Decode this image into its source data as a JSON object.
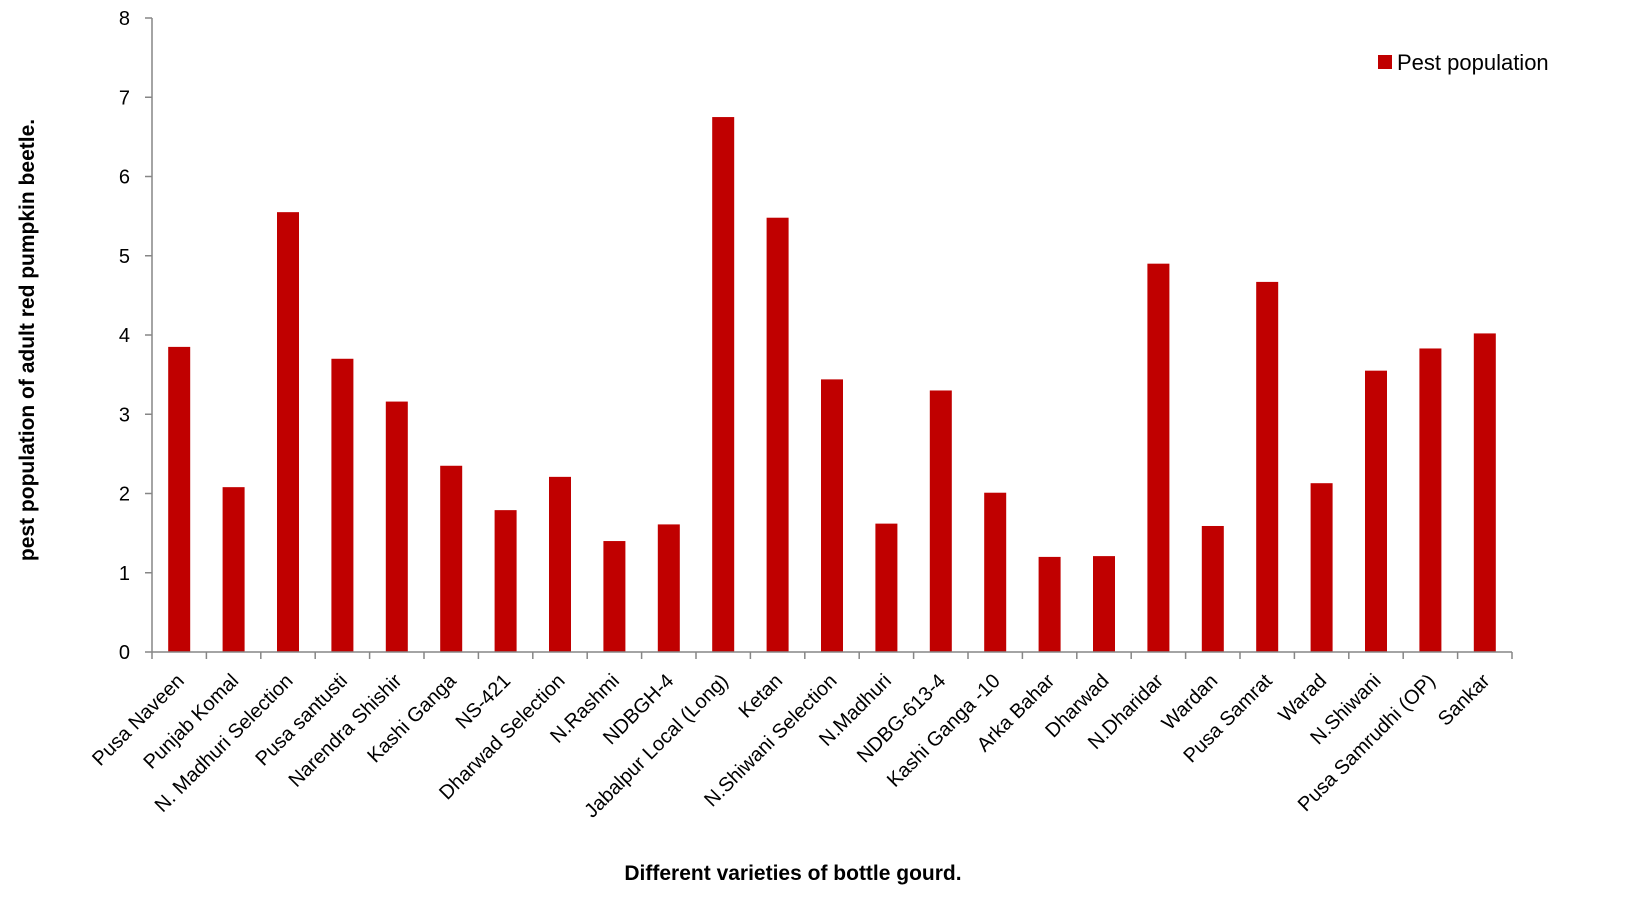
{
  "chart_data": {
    "type": "bar",
    "title": "",
    "xlabel": "Different varieties of bottle gourd.",
    "ylabel": "pest population of adult red pumpkin beetle.",
    "ylim": [
      0,
      8
    ],
    "yticks": [
      0,
      1,
      2,
      3,
      4,
      5,
      6,
      7,
      8
    ],
    "grid": false,
    "legend_position": "top-right",
    "categories": [
      "Pusa Naveen",
      "Punjab Komal",
      "N. Madhuri Selection",
      "Pusa santusti",
      "Narendra Shishir",
      "Kashi Ganga",
      "NS-421",
      "Dharwad Selection",
      "N.Rashmi",
      "NDBGH-4",
      "Jabalpur Local (Long)",
      "Ketan",
      "N.Shiwani Selection",
      "N.Madhuri",
      "NDBG-613-4",
      "Kashi Ganga -10",
      "Arka Bahar",
      "Dharwad",
      "N.Dharidar",
      "Wardan",
      "Pusa Samrat",
      "Warad",
      "N.Shiwani",
      "Pusa Samrudhi (OP)",
      "Sankar"
    ],
    "series": [
      {
        "name": "Pest population",
        "color": "#c00000",
        "values": [
          3.85,
          2.08,
          5.55,
          3.7,
          3.16,
          2.35,
          1.79,
          2.21,
          1.4,
          1.61,
          6.75,
          5.48,
          3.44,
          1.62,
          3.3,
          2.01,
          1.2,
          1.21,
          4.9,
          1.59,
          4.67,
          2.13,
          3.55,
          3.83,
          4.02
        ]
      }
    ]
  }
}
